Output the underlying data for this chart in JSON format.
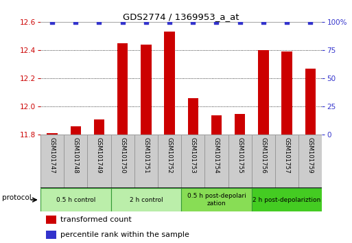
{
  "title": "GDS2774 / 1369953_a_at",
  "samples": [
    "GSM101747",
    "GSM101748",
    "GSM101749",
    "GSM101750",
    "GSM101751",
    "GSM101752",
    "GSM101753",
    "GSM101754",
    "GSM101755",
    "GSM101756",
    "GSM101757",
    "GSM101759"
  ],
  "transformed_counts": [
    11.81,
    11.86,
    11.91,
    12.45,
    12.44,
    12.53,
    12.06,
    11.94,
    11.95,
    12.4,
    12.39,
    12.27
  ],
  "percentile_ranks": [
    100,
    100,
    100,
    100,
    100,
    100,
    100,
    100,
    100,
    100,
    100,
    100
  ],
  "ylim_left": [
    11.8,
    12.6
  ],
  "ylim_right": [
    0,
    100
  ],
  "yticks_left": [
    11.8,
    12.0,
    12.2,
    12.4,
    12.6
  ],
  "yticks_right": [
    0,
    25,
    50,
    75,
    100
  ],
  "bar_color": "#cc0000",
  "dot_color": "#3333cc",
  "groups": [
    {
      "label": "0.5 h control",
      "start": 0,
      "end": 3,
      "color": "#bbeeaa"
    },
    {
      "label": "2 h control",
      "start": 3,
      "end": 6,
      "color": "#bbeeaa"
    },
    {
      "label": "0.5 h post-depolarization",
      "start": 6,
      "end": 9,
      "color": "#88dd55"
    },
    {
      "label": "2 h post-depolariztion",
      "start": 9,
      "end": 12,
      "color": "#44cc22"
    }
  ],
  "protocol_label": "protocol",
  "legend_bar_label": "transformed count",
  "legend_dot_label": "percentile rank within the sample",
  "background_color": "#ffffff",
  "tick_label_color_left": "#cc0000",
  "tick_label_color_right": "#3333cc",
  "bar_width": 0.45,
  "sample_bg_color": "#cccccc",
  "group_edge_color": "#339933",
  "sample_edge_color": "#999999"
}
